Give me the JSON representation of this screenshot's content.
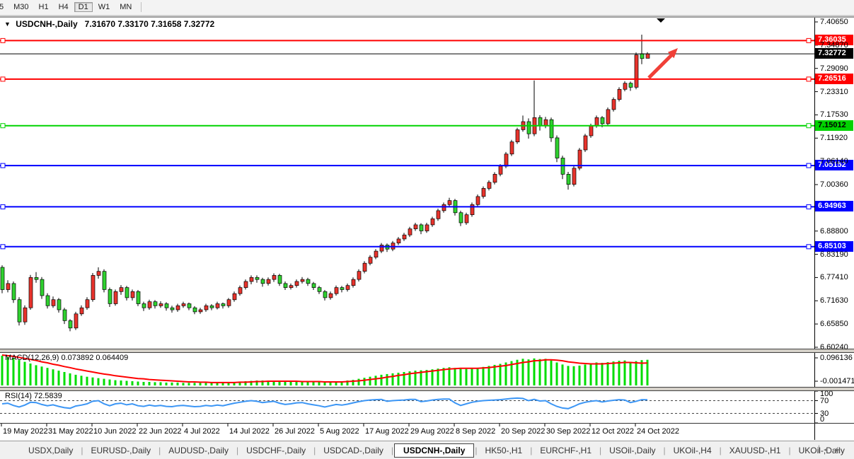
{
  "toolbar": {
    "timeframes": [
      "5",
      "M30",
      "H1",
      "H4",
      "D1",
      "W1",
      "MN"
    ],
    "active": "D1"
  },
  "chart_header": {
    "symbol_title": "USDCNH-,Daily",
    "ohlc_values": "7.31670 7.33170 7.31658 7.32772"
  },
  "price_axis": {
    "ticks": [
      "7.40650",
      "7.34870",
      "7.29090",
      "7.23310",
      "7.17530",
      "7.11920",
      "7.06140",
      "7.00360",
      null,
      "6.88800",
      "6.83190",
      "6.77410",
      "6.71630",
      "6.65850",
      "6.60240"
    ]
  },
  "horizontal_lines": [
    {
      "value": 7.36035,
      "label": "7.36035",
      "color": "#ff0000",
      "badge_bg": "#ff0000",
      "badge_fg": "#ffffff",
      "thickness": 2
    },
    {
      "value": 7.26516,
      "label": "7.26516",
      "color": "#ff0000",
      "badge_bg": "#ff0000",
      "badge_fg": "#ffffff",
      "thickness": 2
    },
    {
      "value": 7.15012,
      "label": "7.15012",
      "color": "#00d300",
      "badge_bg": "#00d300",
      "badge_fg": "#000000",
      "thickness": 2
    },
    {
      "value": 7.05152,
      "label": "7.05152",
      "color": "#0000ff",
      "badge_bg": "#0000ff",
      "badge_fg": "#ffffff",
      "thickness": 2
    },
    {
      "value": 6.94963,
      "label": "6.94963",
      "color": "#0000ff",
      "badge_bg": "#0000ff",
      "badge_fg": "#ffffff",
      "thickness": 2
    },
    {
      "value": 6.85103,
      "label": "6.85103",
      "color": "#0000ff",
      "badge_bg": "#0000ff",
      "badge_fg": "#ffffff",
      "thickness": 2
    }
  ],
  "current_price_line": {
    "value": 7.32772,
    "label": "7.32772",
    "color": "#000000",
    "badge_bg": "#000000",
    "badge_fg": "#ffffff",
    "thickness": 1
  },
  "indicators": {
    "macd": {
      "label": "MACD(12,26,9) 0.073892 0.064409",
      "scale_max": "0.096136",
      "scale_min": "-0.001471"
    },
    "rsi": {
      "label": "RSI(14) 72.5839",
      "scale": [
        "100",
        "70",
        "30",
        "0"
      ],
      "levels": [
        70,
        30
      ]
    }
  },
  "date_axis": [
    "19 May 2022",
    "31 May 2022",
    "10 Jun 2022",
    "22 Jun 2022",
    "4 Jul 2022",
    "14 Jul 2022",
    "26 Jul 2022",
    "5 Aug 2022",
    "17 Aug 2022",
    "29 Aug 2022",
    "8 Sep 2022",
    "20 Sep 2022",
    "30 Sep 2022",
    "12 Oct 2022",
    "24 Oct 2022"
  ],
  "tabs": {
    "items": [
      "USDX,Daily",
      "EURUSD-,Daily",
      "AUDUSD-,Daily",
      "USDCHF-,Daily",
      "USDCAD-,Daily",
      "USDCNH-,Daily",
      "HK50-,H1",
      "EURCHF-,H1",
      "USOil-,Daily",
      "UKOil-,H4",
      "XAUUSD-,H1",
      "UKOil-,Daily"
    ],
    "active": "USDCNH-,Daily",
    "scroll_left_arrow": "◂",
    "scroll_right_arrow": "▸"
  },
  "colors": {
    "bull_candle": "#e8332c",
    "bear_candle": "#2fd12f",
    "candle_outline": "#000000",
    "macd_histogram": "#00dd00",
    "macd_signal": "#ff0000",
    "rsi_line": "#3c96f5",
    "annotation_arrow": "#f04038"
  },
  "chart_data": {
    "type": "candlestick",
    "symbol": "USDCNH-",
    "timeframe": "Daily",
    "price_range": [
      6.6024,
      7.4065
    ],
    "x_labels": [
      "19 May 2022",
      "31 May 2022",
      "10 Jun 2022",
      "22 Jun 2022",
      "4 Jul 2022",
      "14 Jul 2022",
      "26 Jul 2022",
      "5 Aug 2022",
      "17 Aug 2022",
      "29 Aug 2022",
      "8 Sep 2022",
      "20 Sep 2022",
      "30 Sep 2022",
      "12 Oct 2022",
      "24 Oct 2022"
    ],
    "candles": [
      [
        6.8,
        6.805,
        6.736,
        6.745
      ],
      [
        6.745,
        6.768,
        6.738,
        6.76
      ],
      [
        6.76,
        6.765,
        6.712,
        6.72
      ],
      [
        6.72,
        6.726,
        6.656,
        6.665
      ],
      [
        6.665,
        6.706,
        6.658,
        6.7
      ],
      [
        6.7,
        6.781,
        6.695,
        6.775
      ],
      [
        6.775,
        6.788,
        6.762,
        6.77
      ],
      [
        6.77,
        6.776,
        6.722,
        6.73
      ],
      [
        6.73,
        6.736,
        6.698,
        6.705
      ],
      [
        6.705,
        6.728,
        6.7,
        6.72
      ],
      [
        6.72,
        6.724,
        6.688,
        6.695
      ],
      [
        6.695,
        6.7,
        6.66,
        6.668
      ],
      [
        6.668,
        6.672,
        6.642,
        6.65
      ],
      [
        6.65,
        6.69,
        6.645,
        6.685
      ],
      [
        6.685,
        6.706,
        6.68,
        6.7
      ],
      [
        6.7,
        6.726,
        6.695,
        6.72
      ],
      [
        6.72,
        6.786,
        6.715,
        6.78
      ],
      [
        6.78,
        6.8,
        6.772,
        6.79
      ],
      [
        6.79,
        6.795,
        6.738,
        6.745
      ],
      [
        6.745,
        6.75,
        6.702,
        6.71
      ],
      [
        6.71,
        6.745,
        6.705,
        6.74
      ],
      [
        6.74,
        6.756,
        6.732,
        6.75
      ],
      [
        6.75,
        6.754,
        6.718,
        6.725
      ],
      [
        6.725,
        6.745,
        6.718,
        6.74
      ],
      [
        6.74,
        6.744,
        6.704,
        6.71
      ],
      [
        6.71,
        6.715,
        6.692,
        6.7
      ],
      [
        6.7,
        6.72,
        6.695,
        6.715
      ],
      [
        6.715,
        6.719,
        6.698,
        6.705
      ],
      [
        6.705,
        6.716,
        6.7,
        6.71
      ],
      [
        6.71,
        6.714,
        6.693,
        6.7
      ],
      [
        6.7,
        6.705,
        6.688,
        6.695
      ],
      [
        6.695,
        6.71,
        6.69,
        6.705
      ],
      [
        6.705,
        6.715,
        6.7,
        6.71
      ],
      [
        6.71,
        6.713,
        6.694,
        6.7
      ],
      [
        6.7,
        6.704,
        6.684,
        6.69
      ],
      [
        6.69,
        6.7,
        6.685,
        6.695
      ],
      [
        6.695,
        6.71,
        6.69,
        6.705
      ],
      [
        6.705,
        6.709,
        6.694,
        6.7
      ],
      [
        6.7,
        6.715,
        6.696,
        6.71
      ],
      [
        6.71,
        6.713,
        6.698,
        6.705
      ],
      [
        6.705,
        6.724,
        6.7,
        6.72
      ],
      [
        6.72,
        6.74,
        6.715,
        6.735
      ],
      [
        6.735,
        6.755,
        6.73,
        6.75
      ],
      [
        6.75,
        6.77,
        6.745,
        6.765
      ],
      [
        6.765,
        6.78,
        6.758,
        6.775
      ],
      [
        6.775,
        6.78,
        6.762,
        6.77
      ],
      [
        6.77,
        6.774,
        6.752,
        6.76
      ],
      [
        6.76,
        6.775,
        6.755,
        6.77
      ],
      [
        6.77,
        6.785,
        6.764,
        6.78
      ],
      [
        6.78,
        6.784,
        6.754,
        6.76
      ],
      [
        6.76,
        6.765,
        6.744,
        6.75
      ],
      [
        6.75,
        6.76,
        6.745,
        6.755
      ],
      [
        6.755,
        6.77,
        6.75,
        6.765
      ],
      [
        6.765,
        6.776,
        6.76,
        6.77
      ],
      [
        6.77,
        6.774,
        6.754,
        6.76
      ],
      [
        6.76,
        6.764,
        6.744,
        6.75
      ],
      [
        6.75,
        6.754,
        6.734,
        6.74
      ],
      [
        6.74,
        6.744,
        6.718,
        6.725
      ],
      [
        6.725,
        6.74,
        6.72,
        6.735
      ],
      [
        6.735,
        6.755,
        6.73,
        6.75
      ],
      [
        6.75,
        6.754,
        6.738,
        6.745
      ],
      [
        6.745,
        6.76,
        6.74,
        6.755
      ],
      [
        6.755,
        6.775,
        6.75,
        6.77
      ],
      [
        6.77,
        6.795,
        6.765,
        6.79
      ],
      [
        6.79,
        6.815,
        6.785,
        6.81
      ],
      [
        6.81,
        6.83,
        6.805,
        6.825
      ],
      [
        6.825,
        6.845,
        6.82,
        6.84
      ],
      [
        6.84,
        6.86,
        6.835,
        6.855
      ],
      [
        6.855,
        6.859,
        6.838,
        6.845
      ],
      [
        6.845,
        6.865,
        6.84,
        6.86
      ],
      [
        6.86,
        6.875,
        6.855,
        6.87
      ],
      [
        6.87,
        6.885,
        6.865,
        6.88
      ],
      [
        6.88,
        6.9,
        6.875,
        6.895
      ],
      [
        6.895,
        6.91,
        6.89,
        6.905
      ],
      [
        6.905,
        6.909,
        6.882,
        6.89
      ],
      [
        6.89,
        6.91,
        6.885,
        6.905
      ],
      [
        6.905,
        6.925,
        6.9,
        6.92
      ],
      [
        6.92,
        6.945,
        6.915,
        6.94
      ],
      [
        6.94,
        6.96,
        6.935,
        6.955
      ],
      [
        6.955,
        6.972,
        6.95,
        6.965
      ],
      [
        6.965,
        6.969,
        6.928,
        6.935
      ],
      [
        6.935,
        6.94,
        6.902,
        6.91
      ],
      [
        6.91,
        6.935,
        6.905,
        6.93
      ],
      [
        6.93,
        6.96,
        6.925,
        6.955
      ],
      [
        6.955,
        6.98,
        6.95,
        6.975
      ],
      [
        6.975,
        7.0,
        6.97,
        6.995
      ],
      [
        6.995,
        7.015,
        6.99,
        7.01
      ],
      [
        7.01,
        7.035,
        7.005,
        7.03
      ],
      [
        7.03,
        7.055,
        7.025,
        7.05
      ],
      [
        7.05,
        7.085,
        7.045,
        7.08
      ],
      [
        7.08,
        7.115,
        7.075,
        7.11
      ],
      [
        7.11,
        7.145,
        7.105,
        7.14
      ],
      [
        7.14,
        7.175,
        7.135,
        7.16
      ],
      [
        7.16,
        7.168,
        7.118,
        7.13
      ],
      [
        7.13,
        7.262,
        7.124,
        7.17
      ],
      [
        7.17,
        7.176,
        7.138,
        7.15
      ],
      [
        7.15,
        7.172,
        7.144,
        7.165
      ],
      [
        7.165,
        7.17,
        7.11,
        7.12
      ],
      [
        7.12,
        7.126,
        7.06,
        7.07
      ],
      [
        7.07,
        7.076,
        7.018,
        7.03
      ],
      [
        7.03,
        7.036,
        6.992,
        7.005
      ],
      [
        7.005,
        7.05,
        7.0,
        7.045
      ],
      [
        7.045,
        7.095,
        7.04,
        7.09
      ],
      [
        7.09,
        7.13,
        7.085,
        7.125
      ],
      [
        7.125,
        7.155,
        7.12,
        7.15
      ],
      [
        7.15,
        7.175,
        7.145,
        7.17
      ],
      [
        7.17,
        7.174,
        7.146,
        7.155
      ],
      [
        7.155,
        7.195,
        7.15,
        7.19
      ],
      [
        7.19,
        7.22,
        7.185,
        7.215
      ],
      [
        7.215,
        7.245,
        7.21,
        7.24
      ],
      [
        7.24,
        7.26,
        7.235,
        7.255
      ],
      [
        7.255,
        7.259,
        7.236,
        7.245
      ],
      [
        7.245,
        7.331,
        7.24,
        7.325
      ],
      [
        7.328,
        7.375,
        7.302,
        7.316
      ],
      [
        7.3167,
        7.3317,
        7.3166,
        7.3277
      ]
    ],
    "macd_histogram": [
      0.086,
      0.082,
      0.078,
      0.073,
      0.068,
      0.063,
      0.058,
      0.054,
      0.05,
      0.046,
      0.042,
      0.038,
      0.034,
      0.03,
      0.027,
      0.024,
      0.022,
      0.02,
      0.018,
      0.016,
      0.014,
      0.013,
      0.012,
      0.011,
      0.01,
      0.009,
      0.009,
      0.008,
      0.008,
      0.007,
      0.007,
      0.007,
      0.006,
      0.006,
      0.006,
      0.006,
      0.006,
      0.007,
      0.007,
      0.008,
      0.008,
      0.009,
      0.01,
      0.011,
      0.012,
      0.013,
      0.013,
      0.012,
      0.012,
      0.011,
      0.01,
      0.01,
      0.01,
      0.01,
      0.009,
      0.009,
      0.008,
      0.008,
      0.009,
      0.01,
      0.011,
      0.013,
      0.015,
      0.018,
      0.021,
      0.024,
      0.027,
      0.03,
      0.032,
      0.034,
      0.036,
      0.038,
      0.04,
      0.042,
      0.043,
      0.044,
      0.046,
      0.048,
      0.05,
      0.052,
      0.05,
      0.048,
      0.047,
      0.048,
      0.05,
      0.053,
      0.056,
      0.059,
      0.062,
      0.066,
      0.07,
      0.074,
      0.077,
      0.075,
      0.078,
      0.076,
      0.077,
      0.072,
      0.066,
      0.06,
      0.056,
      0.055,
      0.057,
      0.06,
      0.063,
      0.066,
      0.065,
      0.067,
      0.069,
      0.071,
      0.072,
      0.068,
      0.07,
      0.073,
      0.0739
    ],
    "macd_signal": [
      0.088,
      0.086,
      0.084,
      0.081,
      0.078,
      0.075,
      0.072,
      0.068,
      0.065,
      0.061,
      0.058,
      0.054,
      0.051,
      0.047,
      0.044,
      0.041,
      0.038,
      0.035,
      0.032,
      0.03,
      0.027,
      0.025,
      0.023,
      0.021,
      0.019,
      0.018,
      0.016,
      0.015,
      0.014,
      0.013,
      0.012,
      0.011,
      0.01,
      0.009,
      0.009,
      0.008,
      0.008,
      0.007,
      0.007,
      0.007,
      0.007,
      0.007,
      0.008,
      0.008,
      0.009,
      0.01,
      0.01,
      0.011,
      0.011,
      0.011,
      0.011,
      0.011,
      0.011,
      0.01,
      0.01,
      0.01,
      0.01,
      0.009,
      0.009,
      0.009,
      0.009,
      0.01,
      0.011,
      0.012,
      0.014,
      0.016,
      0.018,
      0.02,
      0.023,
      0.025,
      0.028,
      0.03,
      0.033,
      0.035,
      0.037,
      0.039,
      0.041,
      0.043,
      0.045,
      0.047,
      0.048,
      0.049,
      0.049,
      0.049,
      0.049,
      0.05,
      0.051,
      0.053,
      0.055,
      0.057,
      0.06,
      0.063,
      0.066,
      0.068,
      0.071,
      0.072,
      0.074,
      0.074,
      0.073,
      0.071,
      0.068,
      0.066,
      0.064,
      0.063,
      0.062,
      0.062,
      0.062,
      0.063,
      0.064,
      0.065,
      0.066,
      0.066,
      0.065,
      0.064,
      0.0644
    ],
    "rsi": [
      60,
      62,
      55,
      50,
      56,
      65,
      64,
      58,
      54,
      57,
      52,
      48,
      46,
      53,
      56,
      60,
      68,
      70,
      60,
      54,
      60,
      62,
      57,
      60,
      54,
      52,
      56,
      53,
      55,
      52,
      51,
      54,
      55,
      53,
      51,
      52,
      55,
      53,
      56,
      54,
      58,
      62,
      65,
      68,
      70,
      68,
      64,
      66,
      68,
      62,
      58,
      60,
      63,
      64,
      60,
      57,
      54,
      50,
      54,
      58,
      56,
      59,
      63,
      67,
      70,
      72,
      73,
      74,
      68,
      70,
      71,
      72,
      74,
      74,
      67,
      69,
      72,
      74,
      75,
      75,
      63,
      55,
      60,
      65,
      68,
      70,
      71,
      72,
      73,
      75,
      77,
      78,
      77,
      70,
      74,
      69,
      70,
      60,
      52,
      47,
      45,
      52,
      60,
      65,
      68,
      70,
      66,
      69,
      71,
      73,
      72,
      64,
      68,
      73,
      72.58
    ]
  }
}
